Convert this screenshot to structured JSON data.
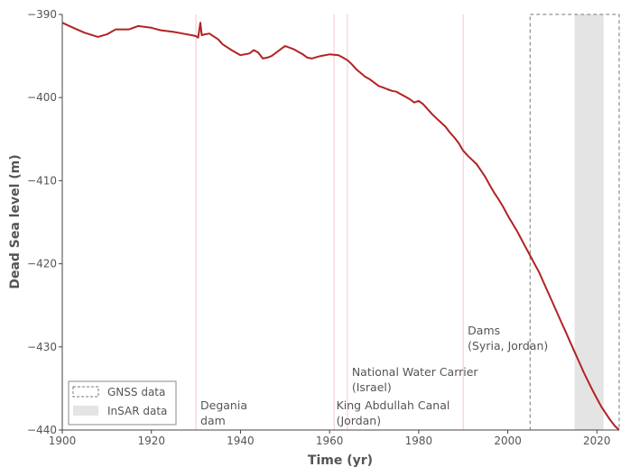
{
  "chart_data": {
    "type": "line",
    "xlabel": "Time (yr)",
    "ylabel": "Dead Sea level (m)",
    "xlim": [
      1900,
      2025
    ],
    "ylim": [
      -440,
      -390
    ],
    "x_ticks": [
      1900,
      1920,
      1940,
      1960,
      1980,
      2000,
      2020
    ],
    "y_ticks": [
      -390,
      -400,
      -410,
      -420,
      -430,
      -440
    ],
    "y_tick_labels": [
      "−390",
      "−400",
      "−410",
      "−420",
      "−430",
      "−440"
    ],
    "grid": false,
    "line_color": "#b22222",
    "series": [
      {
        "x": [
          1900,
          1902,
          1905,
          1908,
          1910,
          1912,
          1915,
          1917,
          1920,
          1922,
          1925,
          1927,
          1929,
          1930,
          1930.5,
          1931,
          1931.3,
          1932,
          1933,
          1935,
          1936,
          1938,
          1940,
          1942,
          1943,
          1944,
          1945,
          1946,
          1947,
          1948,
          1949,
          1950,
          1952,
          1954,
          1955,
          1956,
          1958,
          1960,
          1962,
          1963,
          1964,
          1965,
          1966,
          1968,
          1969,
          1970,
          1971,
          1972,
          1973,
          1974,
          1975,
          1976,
          1977,
          1978,
          1979,
          1980,
          1981,
          1982,
          1983,
          1984,
          1985,
          1986,
          1987,
          1988,
          1989,
          1990,
          1991,
          1992,
          1993,
          1994,
          1995,
          1996,
          1997,
          1998,
          1999,
          2000,
          2001,
          2002,
          2003,
          2004,
          2005,
          2006,
          2007,
          2008,
          2009,
          2010,
          2011,
          2012,
          2013,
          2014,
          2015,
          2016,
          2017,
          2018,
          2019,
          2020,
          2021,
          2022,
          2023,
          2024,
          2025
        ],
        "y": [
          -391.0,
          -391.5,
          -392.2,
          -392.7,
          -392.4,
          -391.8,
          -391.8,
          -391.4,
          -391.6,
          -391.9,
          -392.1,
          -392.3,
          -392.5,
          -392.6,
          -392.8,
          -391.0,
          -392.5,
          -392.4,
          -392.3,
          -393.0,
          -393.6,
          -394.3,
          -394.9,
          -394.7,
          -394.3,
          -394.6,
          -395.3,
          -395.2,
          -395.0,
          -394.6,
          -394.2,
          -393.8,
          -394.2,
          -394.8,
          -395.2,
          -395.3,
          -395.0,
          -394.8,
          -394.9,
          -395.2,
          -395.5,
          -396.0,
          -396.6,
          -397.5,
          -397.8,
          -398.2,
          -398.6,
          -398.8,
          -399.0,
          -399.2,
          -399.3,
          -399.6,
          -399.9,
          -400.2,
          -400.6,
          -400.4,
          -400.8,
          -401.4,
          -402.0,
          -402.5,
          -403.0,
          -403.5,
          -404.2,
          -404.8,
          -405.5,
          -406.4,
          -407.0,
          -407.5,
          -408.0,
          -408.8,
          -409.6,
          -410.6,
          -411.5,
          -412.3,
          -413.2,
          -414.2,
          -415.1,
          -416.0,
          -417.0,
          -418.0,
          -419.0,
          -420.0,
          -421.0,
          -422.2,
          -423.4,
          -424.6,
          -425.8,
          -427.0,
          -428.2,
          -429.4,
          -430.6,
          -431.8,
          -433.0,
          -434.1,
          -435.2,
          -436.2,
          -437.2,
          -438.0,
          -438.8,
          -439.5,
          -440.0
        ]
      }
    ],
    "event_lines_x": [
      1930,
      1961,
      1964,
      1990
    ],
    "annotations": [
      {
        "x": 1931,
        "y": -437.5,
        "lines": [
          "Degania",
          "dam"
        ]
      },
      {
        "x": 1961.5,
        "y": -437.5,
        "lines": [
          "King Abdullah Canal",
          "(Jordan)"
        ]
      },
      {
        "x": 1965,
        "y": -433.5,
        "lines": [
          "National Water Carrier",
          "(Israel)"
        ]
      },
      {
        "x": 1991,
        "y": -428.5,
        "lines": [
          "Dams",
          "(Syria, Jordan)"
        ]
      }
    ],
    "gnss_range": [
      2005,
      2025
    ],
    "insar_range": [
      2015,
      2021.5
    ],
    "legend": {
      "position": "bottom-left",
      "items": [
        {
          "label": "GNSS data",
          "style": "dashed-box"
        },
        {
          "label": "InSAR data",
          "style": "grey-fill"
        }
      ]
    }
  }
}
